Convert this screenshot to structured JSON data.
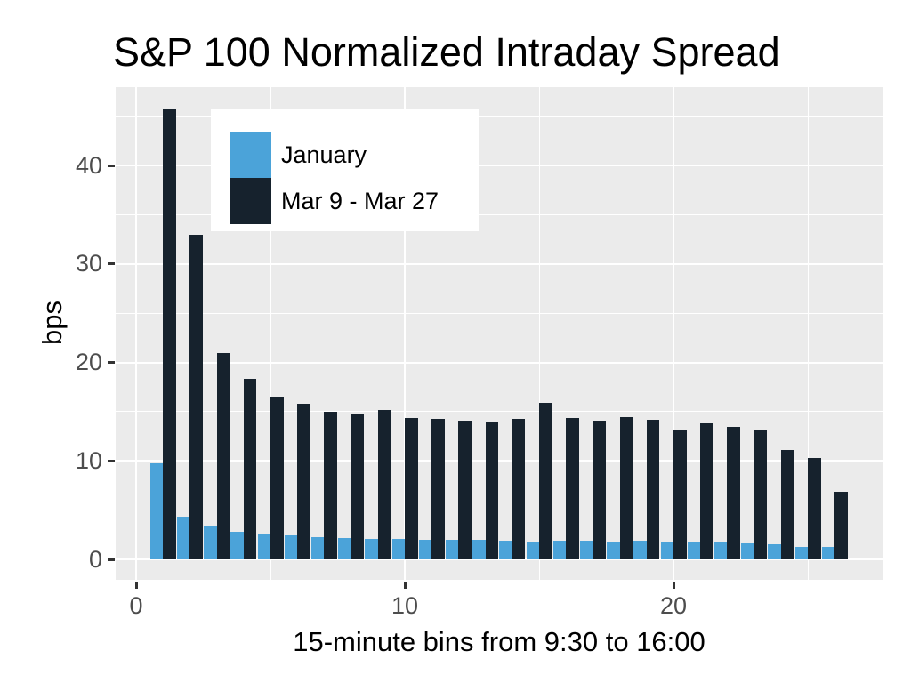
{
  "title": "S&P 100 Normalized Intraday Spread",
  "axes": {
    "y_title": "bps",
    "x_title": "15-minute bins from 9:30 to 16:00",
    "y_tick_labels": [
      "0",
      "10",
      "20",
      "30",
      "40"
    ],
    "y_tick_values": [
      0,
      10,
      20,
      30,
      40
    ],
    "y_minor_values": [
      5,
      15,
      25,
      35,
      45
    ],
    "x_tick_labels": [
      "0",
      "10",
      "20"
    ],
    "x_tick_values": [
      0,
      10,
      20
    ],
    "x_minor_values": [
      5,
      15,
      25
    ]
  },
  "legend": {
    "items": [
      {
        "label": "January",
        "color": "#4ba3d9"
      },
      {
        "label": "Mar 9 - Mar 27",
        "color": "#16222d"
      }
    ]
  },
  "colors": {
    "panel_background": "#ebebeb",
    "gridline": "#ffffff",
    "tick_text": "#4d4d4d",
    "tick_mark": "#333333",
    "title_text": "#000000",
    "january_bar": "#4ba3d9",
    "march_bar": "#16222d",
    "figure_background": "#ffffff"
  },
  "chart_data": {
    "type": "bar",
    "title": "S&P 100 Normalized Intraday Spread",
    "xlabel": "15-minute bins from 9:30 to 16:00",
    "ylabel": "bps",
    "categories": [
      1,
      2,
      3,
      4,
      5,
      6,
      7,
      8,
      9,
      10,
      11,
      12,
      13,
      14,
      15,
      16,
      17,
      18,
      19,
      20,
      21,
      22,
      23,
      24,
      25,
      26
    ],
    "series": [
      {
        "name": "January",
        "values": [
          9.8,
          4.3,
          3.3,
          2.8,
          2.5,
          2.4,
          2.3,
          2.2,
          2.1,
          2.1,
          2.0,
          2.0,
          2.0,
          1.9,
          1.8,
          1.9,
          1.9,
          1.8,
          1.9,
          1.8,
          1.7,
          1.7,
          1.6,
          1.5,
          1.3,
          1.3
        ]
      },
      {
        "name": "Mar 9 - Mar 27",
        "values": [
          45.7,
          33.0,
          21.0,
          18.3,
          16.5,
          15.8,
          15.0,
          14.8,
          15.2,
          14.4,
          14.3,
          14.1,
          14.0,
          14.3,
          15.9,
          14.4,
          14.1,
          14.5,
          14.2,
          13.2,
          13.8,
          13.5,
          13.1,
          11.1,
          10.3,
          6.9
        ]
      }
    ],
    "ylim": [
      0,
      48
    ],
    "xlim": [
      -0.8,
      27.8
    ],
    "grid": true,
    "legend_position": "top-left-inside",
    "bar_mode": "grouped"
  }
}
